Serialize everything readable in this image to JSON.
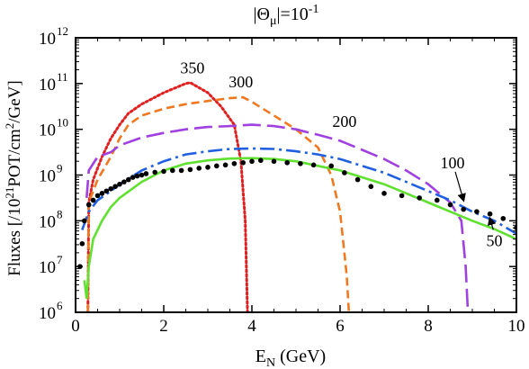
{
  "chart_data": {
    "type": "line",
    "title_parts": {
      "open": "|",
      "theta": "Θ",
      "sub": "μ",
      "rest": "|=10",
      "exp": "-1"
    },
    "xlabel_parts": {
      "main": "E",
      "sub": "N",
      "rest": " (GeV)"
    },
    "ylabel_parts": {
      "a": "Fluxes [/10",
      "a_sup": "21",
      "b": "POT/cm",
      "b_sup": "2",
      "c": "/GeV]"
    },
    "xlim": [
      0,
      10
    ],
    "ylim_log10": [
      6,
      12
    ],
    "x_ticks": [
      "0",
      "2",
      "4",
      "6",
      "8",
      "10"
    ],
    "y_ticks": [
      {
        "base": "10",
        "exp": "6"
      },
      {
        "base": "10",
        "exp": "7"
      },
      {
        "base": "10",
        "exp": "8"
      },
      {
        "base": "10",
        "exp": "9"
      },
      {
        "base": "10",
        "exp": "10"
      },
      {
        "base": "10",
        "exp": "11"
      },
      {
        "base": "10",
        "exp": "12"
      }
    ],
    "grid": false,
    "series": [
      {
        "label": "350",
        "style": "dotted",
        "color": "#e02020",
        "points": [
          [
            0.28,
            6.0
          ],
          [
            0.3,
            8.4
          ],
          [
            0.4,
            8.9
          ],
          [
            0.6,
            9.4
          ],
          [
            0.8,
            9.8
          ],
          [
            1.0,
            10.1
          ],
          [
            1.2,
            10.35
          ],
          [
            1.5,
            10.55
          ],
          [
            2.0,
            10.8
          ],
          [
            2.5,
            11.0
          ],
          [
            2.6,
            11.02
          ],
          [
            3.0,
            10.8
          ],
          [
            3.3,
            10.5
          ],
          [
            3.6,
            10.1
          ],
          [
            3.75,
            9.3
          ],
          [
            3.85,
            8.0
          ],
          [
            3.9,
            6.0
          ]
        ]
      },
      {
        "label": "300",
        "style": "dashed",
        "color": "#f07820",
        "points": [
          [
            0.28,
            6.0
          ],
          [
            0.3,
            8.4
          ],
          [
            0.5,
            8.9
          ],
          [
            0.8,
            9.4
          ],
          [
            1.0,
            9.8
          ],
          [
            1.2,
            10.1
          ],
          [
            1.5,
            10.3
          ],
          [
            2.0,
            10.45
          ],
          [
            2.5,
            10.55
          ],
          [
            3.0,
            10.62
          ],
          [
            3.5,
            10.68
          ],
          [
            3.8,
            10.7
          ],
          [
            4.0,
            10.6
          ],
          [
            4.5,
            10.3
          ],
          [
            5.0,
            10.0
          ],
          [
            5.5,
            9.6
          ],
          [
            5.8,
            9.0
          ],
          [
            6.0,
            8.2
          ],
          [
            6.15,
            6.8
          ],
          [
            6.2,
            6.0
          ]
        ]
      },
      {
        "label": "200",
        "style": "longdash",
        "color": "#a040e0",
        "points": [
          [
            0.25,
            8.5
          ],
          [
            0.3,
            9.1
          ],
          [
            0.5,
            9.4
          ],
          [
            0.8,
            9.5
          ],
          [
            1.0,
            9.65
          ],
          [
            1.5,
            9.82
          ],
          [
            2.0,
            9.92
          ],
          [
            2.5,
            10.0
          ],
          [
            3.0,
            10.05
          ],
          [
            3.5,
            10.07
          ],
          [
            4.0,
            10.1
          ],
          [
            4.5,
            10.07
          ],
          [
            5.0,
            10.0
          ],
          [
            5.5,
            9.88
          ],
          [
            6.0,
            9.75
          ],
          [
            6.5,
            9.55
          ],
          [
            7.0,
            9.35
          ],
          [
            7.5,
            9.1
          ],
          [
            8.0,
            8.8
          ],
          [
            8.5,
            8.4
          ],
          [
            8.75,
            8.0
          ],
          [
            8.85,
            7.0
          ],
          [
            8.9,
            6.0
          ]
        ]
      },
      {
        "label": "100",
        "style": "dashdot",
        "color": "#2060e0",
        "points": [
          [
            0.15,
            7.8
          ],
          [
            0.3,
            8.2
          ],
          [
            0.5,
            8.45
          ],
          [
            0.8,
            8.65
          ],
          [
            1.0,
            8.8
          ],
          [
            1.5,
            9.1
          ],
          [
            2.0,
            9.3
          ],
          [
            2.5,
            9.45
          ],
          [
            3.0,
            9.52
          ],
          [
            3.5,
            9.57
          ],
          [
            4.0,
            9.58
          ],
          [
            4.5,
            9.57
          ],
          [
            5.0,
            9.52
          ],
          [
            5.5,
            9.45
          ],
          [
            6.0,
            9.35
          ],
          [
            6.5,
            9.2
          ],
          [
            7.0,
            9.05
          ],
          [
            7.5,
            8.85
          ],
          [
            8.0,
            8.65
          ],
          [
            8.5,
            8.45
          ],
          [
            9.0,
            8.2
          ],
          [
            9.5,
            8.0
          ],
          [
            10.0,
            7.72
          ]
        ]
      },
      {
        "label": "50",
        "style": "solid",
        "color": "#60e030",
        "points": [
          [
            0.2,
            6.7
          ],
          [
            0.25,
            6.3
          ],
          [
            0.3,
            7.0
          ],
          [
            0.4,
            7.6
          ],
          [
            0.6,
            8.0
          ],
          [
            0.8,
            8.3
          ],
          [
            1.0,
            8.5
          ],
          [
            1.5,
            8.85
          ],
          [
            2.0,
            9.1
          ],
          [
            2.5,
            9.25
          ],
          [
            3.0,
            9.32
          ],
          [
            3.5,
            9.36
          ],
          [
            4.0,
            9.37
          ],
          [
            4.5,
            9.35
          ],
          [
            5.0,
            9.3
          ],
          [
            5.5,
            9.2
          ],
          [
            6.0,
            9.1
          ],
          [
            6.5,
            8.95
          ],
          [
            7.0,
            8.8
          ],
          [
            7.5,
            8.6
          ],
          [
            8.0,
            8.4
          ],
          [
            8.5,
            8.2
          ],
          [
            9.0,
            8.0
          ],
          [
            9.5,
            7.82
          ],
          [
            10.0,
            7.6
          ]
        ]
      },
      {
        "label": "",
        "style": "points",
        "color": "#000000",
        "points": [
          [
            0.1,
            7.0
          ],
          [
            0.15,
            7.5
          ],
          [
            0.2,
            8.0
          ],
          [
            0.3,
            8.35
          ],
          [
            0.4,
            8.45
          ],
          [
            0.5,
            8.55
          ],
          [
            0.6,
            8.6
          ],
          [
            0.7,
            8.65
          ],
          [
            0.8,
            8.7
          ],
          [
            0.9,
            8.75
          ],
          [
            1.0,
            8.8
          ],
          [
            1.1,
            8.85
          ],
          [
            1.2,
            8.9
          ],
          [
            1.3,
            8.95
          ],
          [
            1.4,
            8.98
          ],
          [
            1.5,
            9.0
          ],
          [
            1.6,
            9.03
          ],
          [
            1.8,
            9.06
          ],
          [
            2.0,
            9.08
          ],
          [
            2.2,
            9.1
          ],
          [
            2.4,
            9.1
          ],
          [
            2.6,
            9.12
          ],
          [
            2.8,
            9.15
          ],
          [
            3.0,
            9.17
          ],
          [
            3.2,
            9.2
          ],
          [
            3.4,
            9.22
          ],
          [
            3.6,
            9.25
          ],
          [
            3.8,
            9.27
          ],
          [
            4.0,
            9.3
          ],
          [
            4.2,
            9.32
          ],
          [
            4.5,
            9.3
          ],
          [
            4.8,
            9.27
          ],
          [
            5.1,
            9.25
          ],
          [
            5.4,
            9.22
          ],
          [
            5.8,
            9.2
          ],
          [
            6.1,
            9.05
          ],
          [
            6.4,
            8.9
          ],
          [
            6.7,
            8.75
          ],
          [
            7.0,
            8.6
          ],
          [
            7.4,
            8.55
          ],
          [
            7.8,
            8.5
          ],
          [
            8.2,
            8.45
          ],
          [
            8.5,
            8.35
          ],
          [
            8.8,
            8.25
          ],
          [
            9.1,
            8.2
          ],
          [
            9.4,
            8.15
          ],
          [
            9.7,
            8.05
          ],
          [
            10.0,
            7.85
          ]
        ]
      }
    ],
    "annotations": [
      {
        "text": "350",
        "x": 2.65,
        "y_log": 11.22
      },
      {
        "text": "300",
        "x": 3.75,
        "y_log": 10.92
      },
      {
        "text": "200",
        "x": 6.1,
        "y_log": 10.05
      },
      {
        "text": "100",
        "x": 8.55,
        "y_log": 9.15,
        "arrow_to": [
          8.8,
          8.45
        ]
      },
      {
        "text": "50",
        "x": 9.5,
        "y_log": 7.45,
        "arrow_to": [
          9.4,
          8.05
        ]
      }
    ]
  }
}
